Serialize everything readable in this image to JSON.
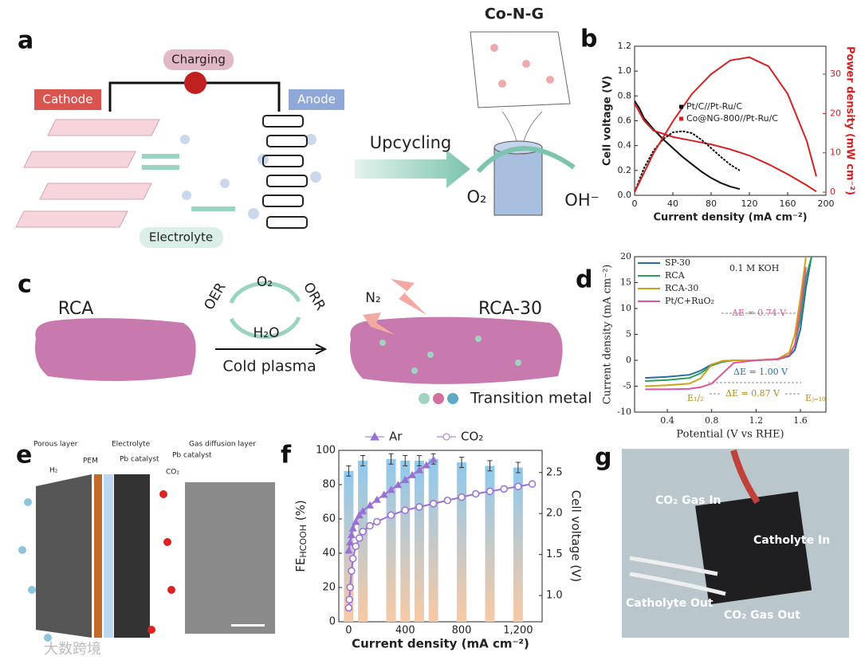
{
  "panel_labels": [
    "a",
    "b",
    "c",
    "d",
    "e",
    "f",
    "g"
  ],
  "panel_a": {
    "charging": "Charging",
    "cathode": "Cathode",
    "anode": "Anode",
    "electrolyte": "Electrolyte",
    "upcycling": "Upcycling",
    "catalyst": "Co-N-G",
    "reactant": "O₂",
    "product": "OH⁻"
  },
  "panel_c": {
    "left": "RCA",
    "right": "RCA-30",
    "oer": "OER",
    "orr": "ORR",
    "o2": "O₂",
    "h2o": "H₂O",
    "process": "Cold plasma",
    "n2": "N₂",
    "legend": "Transition metal"
  },
  "panel_e": {
    "porous": "Porous layer",
    "h2": "H₂",
    "pem": "PEM",
    "electrolyte": "Electrolyte",
    "pb1": "Pb catalyst",
    "gdl": "Gas diffusion layer",
    "pb2": "Pb catalyst",
    "co2": "CO₂"
  },
  "panel_g": {
    "gas_in": "CO₂ Gas In",
    "catholyte_in": "Catholyte In",
    "catholyte_out": "Catholyte Out",
    "gas_out": "CO₂ Gas Out"
  },
  "watermark": "大数跨境",
  "chart_data": [
    {
      "type": "line",
      "xlabel": "Current density (mA cm⁻²)",
      "ylabel": "Cell voltage (V)",
      "y2label": "Power density (mW cm⁻²)",
      "y2_color": "#d62020",
      "xlim": [
        0,
        200
      ],
      "xticks": [
        0,
        40,
        80,
        120,
        160,
        200
      ],
      "ylim": [
        0,
        1.2
      ],
      "yticks": [
        {
          "value": 0,
          "label": "0.0"
        },
        0.2,
        0.4,
        0.6,
        0.8,
        {
          "value": 1,
          "label": "1.0"
        },
        1.2
      ],
      "y2lim": [
        -0.8,
        37.1
      ],
      "y2ticks": [
        0,
        10,
        20,
        30
      ],
      "series": [
        {
          "name": "Pt/C//Pt-Ru/C",
          "color": "#111111",
          "x": [
            0,
            5,
            10,
            20,
            30,
            40,
            50,
            60,
            70,
            80,
            90,
            100,
            110
          ],
          "values": [
            0.76,
            0.7,
            0.62,
            0.53,
            0.45,
            0.38,
            0.31,
            0.25,
            0.19,
            0.14,
            0.1,
            0.07,
            0.05
          ]
        },
        {
          "name": "Co@NG-800//Pt-Ru/C",
          "color": "#d62020",
          "x": [
            0,
            10,
            20,
            40,
            60,
            80,
            100,
            120,
            140,
            160,
            180,
            190
          ],
          "values": [
            0.74,
            0.6,
            0.52,
            0.47,
            0.44,
            0.41,
            0.37,
            0.32,
            0.25,
            0.17,
            0.08,
            0.03
          ]
        },
        {
          "color": "#111111",
          "axis": "y2",
          "dash": true,
          "x": [
            0,
            10,
            20,
            30,
            40,
            50,
            60,
            70,
            80,
            90,
            100,
            110
          ],
          "values": [
            0,
            6.2,
            10.6,
            13.5,
            15.2,
            15.5,
            15,
            13.3,
            11.2,
            9,
            7,
            5.5
          ]
        },
        {
          "color": "#d62020",
          "axis": "y2",
          "x": [
            0,
            20,
            40,
            60,
            80,
            100,
            120,
            140,
            160,
            180,
            190
          ],
          "values": [
            0,
            10,
            18,
            25,
            30,
            33.5,
            34.3,
            32,
            25,
            13,
            4
          ]
        }
      ]
    },
    {
      "type": "line",
      "xlabel": "Potential (V vs RHE)",
      "ylabel": "Current density (mA cm⁻²)",
      "xlim": [
        0.105,
        1.83
      ],
      "xticks": [
        0.4,
        0.8,
        1.2,
        1.6
      ],
      "ylim": [
        -10,
        20
      ],
      "yticks": [
        -10,
        -5,
        0,
        5,
        10,
        15,
        20
      ],
      "annotations": [
        "0.1 M KOH",
        "ΔE = 0.74 V",
        "ΔE = 1.00 V",
        "ΔE = 0.87 V",
        "E₁/₂",
        "Eⱼ₌₁₀"
      ],
      "series": [
        {
          "name": "SP-30",
          "color": "#2b6ca3",
          "x": [
            0.2,
            0.4,
            0.6,
            0.7,
            0.8,
            0.9,
            1.0,
            1.2,
            1.4,
            1.5,
            1.55,
            1.6,
            1.65,
            1.7
          ],
          "values": [
            -3.4,
            -3.2,
            -2.8,
            -2,
            -0.8,
            -0.2,
            0,
            0,
            0.2,
            0.8,
            2,
            6,
            14,
            20
          ]
        },
        {
          "name": "RCA",
          "color": "#2ca05a",
          "x": [
            0.2,
            0.4,
            0.6,
            0.7,
            0.8,
            0.9,
            1.0,
            1.2,
            1.4,
            1.5,
            1.55,
            1.6,
            1.65,
            1.7
          ],
          "values": [
            -4,
            -3.8,
            -3.4,
            -2.5,
            -1,
            -0.3,
            0,
            0,
            0.2,
            1,
            3,
            8,
            16,
            20
          ]
        },
        {
          "name": "RCA-30",
          "color": "#d4a017",
          "x": [
            0.2,
            0.4,
            0.6,
            0.7,
            0.8,
            0.9,
            1.0,
            1.2,
            1.4,
            1.5,
            1.55,
            1.6,
            1.65
          ],
          "values": [
            -5,
            -4.8,
            -4.5,
            -3.5,
            -0.8,
            -0.1,
            0,
            0,
            0.3,
            1.5,
            5,
            12,
            20
          ]
        },
        {
          "name": "Pt/C+RuO₂",
          "color": "#e0559a",
          "x": [
            0.2,
            0.4,
            0.6,
            0.7,
            0.8,
            0.9,
            1.0,
            1.2,
            1.4,
            1.5,
            1.55,
            1.6,
            1.65
          ],
          "values": [
            -5.6,
            -5.6,
            -5.5,
            -5.2,
            -4.5,
            -2.5,
            -0.5,
            0,
            0.2,
            1,
            3,
            10,
            18
          ]
        }
      ]
    },
    {
      "type": "combo",
      "xlabel": "Current density (mA cm⁻²)",
      "ylabel": {
        "text": "FE",
        "sub": "HCOOH",
        "unit": " (%)"
      },
      "y2label": "Cell voltage (V)",
      "xlim": [
        -70,
        1370
      ],
      "xticks": [
        0,
        400,
        800,
        {
          "value": 1200,
          "label": "1,200"
        }
      ],
      "ylim": [
        0,
        100
      ],
      "yticks": [
        0,
        20,
        40,
        60,
        80,
        100
      ],
      "y2lim": [
        0.68,
        2.77
      ],
      "y2ticks": [
        {
          "value": 1,
          "label": "1.0"
        },
        1.5,
        {
          "value": 2,
          "label": "2.0"
        },
        2.5
      ],
      "series": [
        {
          "kind": "bar",
          "x": [
            0,
            100,
            300,
            400,
            500,
            600,
            800,
            1000,
            1200
          ],
          "values": [
            88,
            94,
            95,
            94,
            94,
            95,
            93,
            91,
            90
          ],
          "errors": [
            3,
            3,
            3,
            3,
            3,
            3,
            3,
            3,
            3
          ]
        },
        {
          "name": "Ar",
          "color": "#9b6fd6",
          "axis": "y2",
          "marker": "triangle",
          "x": [
            0,
            10,
            20,
            30,
            50,
            75,
            100,
            150,
            200,
            250,
            300,
            350,
            400,
            450,
            500,
            550,
            600
          ],
          "values": [
            1.55,
            1.65,
            1.74,
            1.82,
            1.9,
            1.98,
            2.03,
            2.1,
            2.17,
            2.23,
            2.29,
            2.35,
            2.41,
            2.47,
            2.53,
            2.59,
            2.66
          ]
        },
        {
          "name": "CO₂",
          "color": "#9b6fd6",
          "axis": "y2",
          "marker": "circle",
          "x": [
            0,
            5,
            10,
            20,
            30,
            50,
            75,
            100,
            150,
            200,
            300,
            400,
            500,
            600,
            700,
            800,
            900,
            1000,
            1100,
            1200,
            1300
          ],
          "values": [
            0.85,
            0.95,
            1.1,
            1.3,
            1.45,
            1.6,
            1.7,
            1.78,
            1.85,
            1.9,
            1.98,
            2.04,
            2.08,
            2.12,
            2.16,
            2.2,
            2.24,
            2.27,
            2.3,
            2.33,
            2.36
          ]
        }
      ]
    }
  ]
}
